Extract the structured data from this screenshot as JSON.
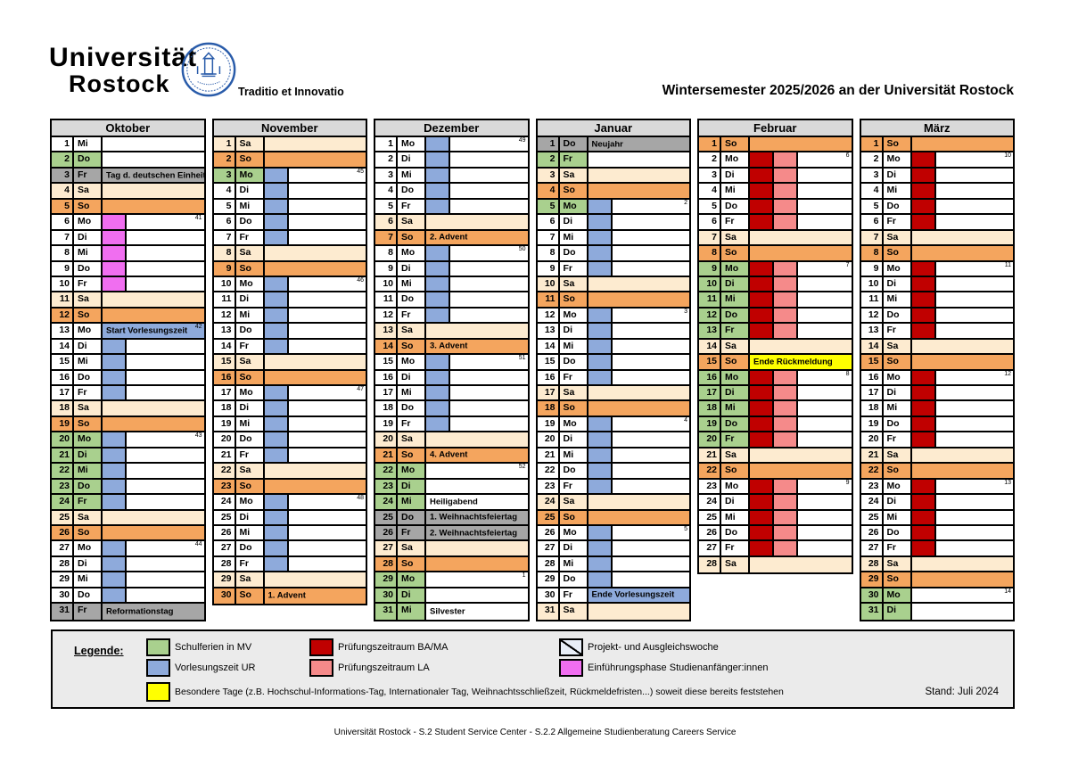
{
  "header": {
    "logo_line1": "Universität",
    "logo_line2": "Rostock",
    "logo_motto": "Traditio et Innovatio",
    "title": "Wintersemester 2025/2026 an der Universität Rostock"
  },
  "colors": {
    "school_holiday_green": "#a9d08e",
    "lecture_blue": "#8eaadb",
    "saturday_cream": "#fdebd0",
    "sunday_orange": "#f4a55e",
    "public_holiday_gray": "#a6a6a6",
    "exam_ba_ma_red": "#c00000",
    "exam_la_pink": "#f58a8a",
    "intro_phase_magenta": "#f06ef0",
    "special_day_yellow": "#ffff00",
    "month_header_gray": "#d9d9d9",
    "legend_bg": "#ebebeb",
    "seal_blue": "#2a5caa"
  },
  "months": [
    {
      "name": "Oktober",
      "days": [
        {
          "n": 1,
          "w": "Mi",
          "t": "plain"
        },
        {
          "n": 2,
          "w": "Do",
          "t": "plain",
          "g": 1
        },
        {
          "n": 3,
          "w": "Fr",
          "t": "hol",
          "l": "Tag d. deutschen Einheit"
        },
        {
          "n": 4,
          "w": "Sa",
          "t": "sa"
        },
        {
          "n": 5,
          "w": "So",
          "t": "so"
        },
        {
          "n": 6,
          "w": "Mo",
          "t": "e",
          "wk": "41"
        },
        {
          "n": 7,
          "w": "Di",
          "t": "e"
        },
        {
          "n": 8,
          "w": "Mi",
          "t": "e"
        },
        {
          "n": 9,
          "w": "Do",
          "t": "e"
        },
        {
          "n": 10,
          "w": "Fr",
          "t": "e"
        },
        {
          "n": 11,
          "w": "Sa",
          "t": "sa"
        },
        {
          "n": 12,
          "w": "So",
          "t": "so"
        },
        {
          "n": 13,
          "w": "Mo",
          "t": "vfull",
          "l": "Start Vorlesungszeit",
          "wk": "42"
        },
        {
          "n": 14,
          "w": "Di",
          "t": "v"
        },
        {
          "n": 15,
          "w": "Mi",
          "t": "v"
        },
        {
          "n": 16,
          "w": "Do",
          "t": "v"
        },
        {
          "n": 17,
          "w": "Fr",
          "t": "v"
        },
        {
          "n": 18,
          "w": "Sa",
          "t": "sa"
        },
        {
          "n": 19,
          "w": "So",
          "t": "so"
        },
        {
          "n": 20,
          "w": "Mo",
          "t": "v",
          "g": 1,
          "wk": "43"
        },
        {
          "n": 21,
          "w": "Di",
          "t": "v",
          "g": 1
        },
        {
          "n": 22,
          "w": "Mi",
          "t": "v",
          "g": 1
        },
        {
          "n": 23,
          "w": "Do",
          "t": "v",
          "g": 1
        },
        {
          "n": 24,
          "w": "Fr",
          "t": "v",
          "g": 1
        },
        {
          "n": 25,
          "w": "Sa",
          "t": "sa"
        },
        {
          "n": 26,
          "w": "So",
          "t": "so"
        },
        {
          "n": 27,
          "w": "Mo",
          "t": "v",
          "wk": "44"
        },
        {
          "n": 28,
          "w": "Di",
          "t": "v"
        },
        {
          "n": 29,
          "w": "Mi",
          "t": "v"
        },
        {
          "n": 30,
          "w": "Do",
          "t": "v"
        },
        {
          "n": 31,
          "w": "Fr",
          "t": "hol",
          "l": "Reformationstag"
        }
      ]
    },
    {
      "name": "November",
      "days": [
        {
          "n": 1,
          "w": "Sa",
          "t": "sa"
        },
        {
          "n": 2,
          "w": "So",
          "t": "so"
        },
        {
          "n": 3,
          "w": "Mo",
          "t": "v",
          "g": 1,
          "wk": "45"
        },
        {
          "n": 4,
          "w": "Di",
          "t": "v"
        },
        {
          "n": 5,
          "w": "Mi",
          "t": "v"
        },
        {
          "n": 6,
          "w": "Do",
          "t": "v"
        },
        {
          "n": 7,
          "w": "Fr",
          "t": "v"
        },
        {
          "n": 8,
          "w": "Sa",
          "t": "sa"
        },
        {
          "n": 9,
          "w": "So",
          "t": "so"
        },
        {
          "n": 10,
          "w": "Mo",
          "t": "v",
          "wk": "46"
        },
        {
          "n": 11,
          "w": "Di",
          "t": "v"
        },
        {
          "n": 12,
          "w": "Mi",
          "t": "v"
        },
        {
          "n": 13,
          "w": "Do",
          "t": "v"
        },
        {
          "n": 14,
          "w": "Fr",
          "t": "v"
        },
        {
          "n": 15,
          "w": "Sa",
          "t": "sa"
        },
        {
          "n": 16,
          "w": "So",
          "t": "so"
        },
        {
          "n": 17,
          "w": "Mo",
          "t": "v",
          "wk": "47"
        },
        {
          "n": 18,
          "w": "Di",
          "t": "v"
        },
        {
          "n": 19,
          "w": "Mi",
          "t": "v"
        },
        {
          "n": 20,
          "w": "Do",
          "t": "v"
        },
        {
          "n": 21,
          "w": "Fr",
          "t": "v"
        },
        {
          "n": 22,
          "w": "Sa",
          "t": "sa"
        },
        {
          "n": 23,
          "w": "So",
          "t": "so"
        },
        {
          "n": 24,
          "w": "Mo",
          "t": "v",
          "wk": "48"
        },
        {
          "n": 25,
          "w": "Di",
          "t": "v"
        },
        {
          "n": 26,
          "w": "Mi",
          "t": "v"
        },
        {
          "n": 27,
          "w": "Do",
          "t": "v"
        },
        {
          "n": 28,
          "w": "Fr",
          "t": "v"
        },
        {
          "n": 29,
          "w": "Sa",
          "t": "sa"
        },
        {
          "n": 30,
          "w": "So",
          "t": "so",
          "l": "1. Advent"
        }
      ]
    },
    {
      "name": "Dezember",
      "days": [
        {
          "n": 1,
          "w": "Mo",
          "t": "v",
          "wk": "49"
        },
        {
          "n": 2,
          "w": "Di",
          "t": "v"
        },
        {
          "n": 3,
          "w": "Mi",
          "t": "v"
        },
        {
          "n": 4,
          "w": "Do",
          "t": "v"
        },
        {
          "n": 5,
          "w": "Fr",
          "t": "v"
        },
        {
          "n": 6,
          "w": "Sa",
          "t": "sa"
        },
        {
          "n": 7,
          "w": "So",
          "t": "so",
          "l": "2. Advent"
        },
        {
          "n": 8,
          "w": "Mo",
          "t": "v",
          "wk": "50"
        },
        {
          "n": 9,
          "w": "Di",
          "t": "v"
        },
        {
          "n": 10,
          "w": "Mi",
          "t": "v"
        },
        {
          "n": 11,
          "w": "Do",
          "t": "v"
        },
        {
          "n": 12,
          "w": "Fr",
          "t": "v"
        },
        {
          "n": 13,
          "w": "Sa",
          "t": "sa"
        },
        {
          "n": 14,
          "w": "So",
          "t": "so",
          "l": "3. Advent"
        },
        {
          "n": 15,
          "w": "Mo",
          "t": "v",
          "wk": "51"
        },
        {
          "n": 16,
          "w": "Di",
          "t": "v"
        },
        {
          "n": 17,
          "w": "Mi",
          "t": "v"
        },
        {
          "n": 18,
          "w": "Do",
          "t": "v"
        },
        {
          "n": 19,
          "w": "Fr",
          "t": "v"
        },
        {
          "n": 20,
          "w": "Sa",
          "t": "sa"
        },
        {
          "n": 21,
          "w": "So",
          "t": "so",
          "l": "4. Advent"
        },
        {
          "n": 22,
          "w": "Mo",
          "t": "plain",
          "g": 1,
          "wk": "52"
        },
        {
          "n": 23,
          "w": "Di",
          "t": "plain",
          "g": 1
        },
        {
          "n": 24,
          "w": "Mi",
          "t": "plain",
          "g": 1,
          "l": "Heiligabend"
        },
        {
          "n": 25,
          "w": "Do",
          "t": "hol",
          "l": "1. Weihnachtsfeiertag"
        },
        {
          "n": 26,
          "w": "Fr",
          "t": "hol",
          "l": "2. Weihnachtsfeiertag"
        },
        {
          "n": 27,
          "w": "Sa",
          "t": "sa"
        },
        {
          "n": 28,
          "w": "So",
          "t": "so"
        },
        {
          "n": 29,
          "w": "Mo",
          "t": "plain",
          "g": 1,
          "wk": "1"
        },
        {
          "n": 30,
          "w": "Di",
          "t": "plain",
          "g": 1
        },
        {
          "n": 31,
          "w": "Mi",
          "t": "plain",
          "g": 1,
          "l": "Silvester"
        }
      ]
    },
    {
      "name": "Januar",
      "days": [
        {
          "n": 1,
          "w": "Do",
          "t": "hol",
          "l": "Neujahr"
        },
        {
          "n": 2,
          "w": "Fr",
          "t": "plain",
          "g": 1
        },
        {
          "n": 3,
          "w": "Sa",
          "t": "sa"
        },
        {
          "n": 4,
          "w": "So",
          "t": "so"
        },
        {
          "n": 5,
          "w": "Mo",
          "t": "v",
          "g": 1,
          "wk": "2"
        },
        {
          "n": 6,
          "w": "Di",
          "t": "v"
        },
        {
          "n": 7,
          "w": "Mi",
          "t": "v"
        },
        {
          "n": 8,
          "w": "Do",
          "t": "v"
        },
        {
          "n": 9,
          "w": "Fr",
          "t": "v"
        },
        {
          "n": 10,
          "w": "Sa",
          "t": "sa"
        },
        {
          "n": 11,
          "w": "So",
          "t": "so"
        },
        {
          "n": 12,
          "w": "Mo",
          "t": "v",
          "wk": "3"
        },
        {
          "n": 13,
          "w": "Di",
          "t": "v"
        },
        {
          "n": 14,
          "w": "Mi",
          "t": "v"
        },
        {
          "n": 15,
          "w": "Do",
          "t": "v"
        },
        {
          "n": 16,
          "w": "Fr",
          "t": "v"
        },
        {
          "n": 17,
          "w": "Sa",
          "t": "sa"
        },
        {
          "n": 18,
          "w": "So",
          "t": "so"
        },
        {
          "n": 19,
          "w": "Mo",
          "t": "v",
          "wk": "4"
        },
        {
          "n": 20,
          "w": "Di",
          "t": "v"
        },
        {
          "n": 21,
          "w": "Mi",
          "t": "v"
        },
        {
          "n": 22,
          "w": "Do",
          "t": "v"
        },
        {
          "n": 23,
          "w": "Fr",
          "t": "v"
        },
        {
          "n": 24,
          "w": "Sa",
          "t": "sa"
        },
        {
          "n": 25,
          "w": "So",
          "t": "so"
        },
        {
          "n": 26,
          "w": "Mo",
          "t": "v",
          "wk": "5"
        },
        {
          "n": 27,
          "w": "Di",
          "t": "v"
        },
        {
          "n": 28,
          "w": "Mi",
          "t": "v"
        },
        {
          "n": 29,
          "w": "Do",
          "t": "v"
        },
        {
          "n": 30,
          "w": "Fr",
          "t": "vfull",
          "l": "Ende Vorlesungszeit"
        },
        {
          "n": 31,
          "w": "Sa",
          "t": "sa"
        }
      ]
    },
    {
      "name": "Februar",
      "days": [
        {
          "n": 1,
          "w": "So",
          "t": "so"
        },
        {
          "n": 2,
          "w": "Mo",
          "t": "p",
          "wk": "6"
        },
        {
          "n": 3,
          "w": "Di",
          "t": "p"
        },
        {
          "n": 4,
          "w": "Mi",
          "t": "p"
        },
        {
          "n": 5,
          "w": "Do",
          "t": "p"
        },
        {
          "n": 6,
          "w": "Fr",
          "t": "p"
        },
        {
          "n": 7,
          "w": "Sa",
          "t": "sa"
        },
        {
          "n": 8,
          "w": "So",
          "t": "so"
        },
        {
          "n": 9,
          "w": "Mo",
          "t": "p",
          "g": 1,
          "wk": "7"
        },
        {
          "n": 10,
          "w": "Di",
          "t": "p",
          "g": 1
        },
        {
          "n": 11,
          "w": "Mi",
          "t": "p",
          "g": 1
        },
        {
          "n": 12,
          "w": "Do",
          "t": "p",
          "g": 1
        },
        {
          "n": 13,
          "w": "Fr",
          "t": "p",
          "g": 1
        },
        {
          "n": 14,
          "w": "Sa",
          "t": "sa"
        },
        {
          "n": 15,
          "w": "So",
          "t": "yfull",
          "l": "Ende Rückmeldung"
        },
        {
          "n": 16,
          "w": "Mo",
          "t": "p",
          "g": 1,
          "wk": "8"
        },
        {
          "n": 17,
          "w": "Di",
          "t": "p",
          "g": 1
        },
        {
          "n": 18,
          "w": "Mi",
          "t": "p",
          "g": 1
        },
        {
          "n": 19,
          "w": "Do",
          "t": "p",
          "g": 1
        },
        {
          "n": 20,
          "w": "Fr",
          "t": "p",
          "g": 1
        },
        {
          "n": 21,
          "w": "Sa",
          "t": "sa"
        },
        {
          "n": 22,
          "w": "So",
          "t": "so"
        },
        {
          "n": 23,
          "w": "Mo",
          "t": "p",
          "wk": "9"
        },
        {
          "n": 24,
          "w": "Di",
          "t": "p"
        },
        {
          "n": 25,
          "w": "Mi",
          "t": "p"
        },
        {
          "n": 26,
          "w": "Do",
          "t": "p"
        },
        {
          "n": 27,
          "w": "Fr",
          "t": "p"
        },
        {
          "n": 28,
          "w": "Sa",
          "t": "sa"
        }
      ]
    },
    {
      "name": "März",
      "days": [
        {
          "n": 1,
          "w": "So",
          "t": "so"
        },
        {
          "n": 2,
          "w": "Mo",
          "t": "b",
          "wk": "10"
        },
        {
          "n": 3,
          "w": "Di",
          "t": "b"
        },
        {
          "n": 4,
          "w": "Mi",
          "t": "b"
        },
        {
          "n": 5,
          "w": "Do",
          "t": "b"
        },
        {
          "n": 6,
          "w": "Fr",
          "t": "b"
        },
        {
          "n": 7,
          "w": "Sa",
          "t": "sa"
        },
        {
          "n": 8,
          "w": "So",
          "t": "so"
        },
        {
          "n": 9,
          "w": "Mo",
          "t": "b",
          "wk": "11"
        },
        {
          "n": 10,
          "w": "Di",
          "t": "b"
        },
        {
          "n": 11,
          "w": "Mi",
          "t": "b"
        },
        {
          "n": 12,
          "w": "Do",
          "t": "b"
        },
        {
          "n": 13,
          "w": "Fr",
          "t": "b"
        },
        {
          "n": 14,
          "w": "Sa",
          "t": "sa"
        },
        {
          "n": 15,
          "w": "So",
          "t": "so"
        },
        {
          "n": 16,
          "w": "Mo",
          "t": "b",
          "wk": "12"
        },
        {
          "n": 17,
          "w": "Di",
          "t": "b"
        },
        {
          "n": 18,
          "w": "Mi",
          "t": "b"
        },
        {
          "n": 19,
          "w": "Do",
          "t": "b"
        },
        {
          "n": 20,
          "w": "Fr",
          "t": "b"
        },
        {
          "n": 21,
          "w": "Sa",
          "t": "sa"
        },
        {
          "n": 22,
          "w": "So",
          "t": "so"
        },
        {
          "n": 23,
          "w": "Mo",
          "t": "b",
          "wk": "13"
        },
        {
          "n": 24,
          "w": "Di",
          "t": "b"
        },
        {
          "n": 25,
          "w": "Mi",
          "t": "b"
        },
        {
          "n": 26,
          "w": "Do",
          "t": "b"
        },
        {
          "n": 27,
          "w": "Fr",
          "t": "b"
        },
        {
          "n": 28,
          "w": "Sa",
          "t": "sa"
        },
        {
          "n": 29,
          "w": "So",
          "t": "so"
        },
        {
          "n": 30,
          "w": "Mo",
          "t": "plain",
          "g": 1,
          "wk": "14"
        },
        {
          "n": 31,
          "w": "Di",
          "t": "plain",
          "g": 1
        }
      ]
    }
  ],
  "legend": {
    "title": "Legende:",
    "items": [
      {
        "key": "green",
        "label": "Schulferien in MV"
      },
      {
        "key": "blue",
        "label": "Vorlesungszeit UR"
      },
      {
        "key": "red",
        "label": "Prüfungszeitraum  BA/MA"
      },
      {
        "key": "pink",
        "label": "Prüfungszeitraum LA"
      },
      {
        "key": "diagonal",
        "label": "Projekt- und Ausgleichswoche"
      },
      {
        "key": "magenta",
        "label": "Einführungsphase Studienanfänger:innen"
      },
      {
        "key": "yellow",
        "label": "Besondere Tage (z.B. Hochschul-Informations-Tag,  Internationaler Tag, Weihnachtsschließzeit, Rückmeldefristen...) soweit diese bereits feststehen"
      }
    ],
    "stand": "Stand: Juli 2024"
  },
  "footer": "Universität Rostock - S.2 Student Service Center - S.2.2 Allgemeine Studienberatung Careers Service"
}
